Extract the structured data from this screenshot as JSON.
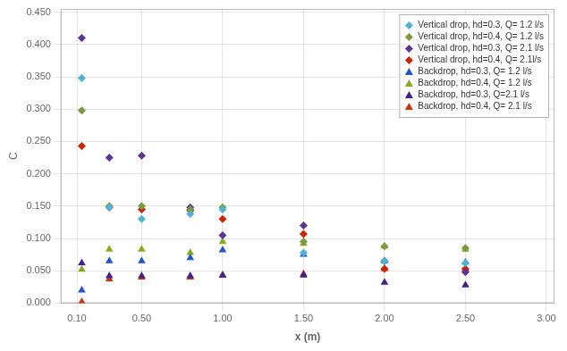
{
  "chart_data": {
    "type": "scatter",
    "xlabel": "x (m)",
    "ylabel": "C",
    "x": [
      0.13,
      0.3,
      0.5,
      0.8,
      1.0,
      1.5,
      2.0,
      2.5
    ],
    "series": [
      {
        "name": "Vertical drop, hd=0.3, Q= 1.2 l/s",
        "marker": "diamond",
        "color": "#4eb3d3",
        "values": [
          0.348,
          0.148,
          0.13,
          0.138,
          0.145,
          0.078,
          0.065,
          0.062
        ]
      },
      {
        "name": "Vertical drop, hd=0.4, Q= 1.2 l/s",
        "marker": "diamond",
        "color": "#7a9a3c",
        "values": [
          0.298,
          0.15,
          0.15,
          0.145,
          0.148,
          0.095,
          0.088,
          0.085
        ]
      },
      {
        "name": "Vertical drop, hd=0.3, Q= 2.1 l/s",
        "marker": "diamond",
        "color": "#5c3399",
        "values": [
          0.41,
          0.225,
          0.228,
          0.148,
          0.105,
          0.12,
          0.065,
          0.048
        ]
      },
      {
        "name": "Vertical drop, hd=0.4, Q= 2.1l/s",
        "marker": "diamond",
        "color": "#cc2200",
        "values": [
          0.243,
          0.148,
          0.145,
          0.143,
          0.13,
          0.107,
          0.053,
          0.053
        ]
      },
      {
        "name": "Backdrop, hd=0.3, Q= 1.2 l/s",
        "marker": "triangle",
        "color": "#2255cc",
        "values": [
          0.02,
          0.065,
          0.065,
          0.07,
          0.082,
          0.075,
          0.065,
          0.063
        ]
      },
      {
        "name": "Backdrop, hd=0.4, Q= 1.2 l/s",
        "marker": "triangle",
        "color": "#88aa22",
        "values": [
          0.052,
          0.083,
          0.083,
          0.078,
          0.095,
          0.092,
          0.088,
          0.083
        ]
      },
      {
        "name": "Backdrop, hd=0.3, Q=2.1 l/s",
        "marker": "triangle",
        "color": "#442288",
        "values": [
          0.062,
          0.042,
          0.042,
          0.042,
          0.043,
          0.043,
          0.032,
          0.028
        ]
      },
      {
        "name": "Backdrop, hd=0.4, Q= 2.1 l/s",
        "marker": "triangle",
        "color": "#cc3311",
        "values": [
          0.002,
          0.037,
          0.04,
          0.04,
          0.043,
          0.045,
          0.053,
          0.053
        ]
      }
    ],
    "xlim": [
      0.0,
      3.05
    ],
    "ylim": [
      0.0,
      0.455
    ],
    "xticks": [
      {
        "value": 0.1,
        "label": "0.10"
      },
      {
        "value": 0.5,
        "label": "0.50"
      },
      {
        "value": 1.0,
        "label": "1.00"
      },
      {
        "value": 1.5,
        "label": "1.50"
      },
      {
        "value": 2.0,
        "label": "2.00"
      },
      {
        "value": 2.5,
        "label": "2.50"
      },
      {
        "value": 3.0,
        "label": "3.00"
      }
    ],
    "yticks": [
      {
        "value": 0.0,
        "label": "0.000"
      },
      {
        "value": 0.05,
        "label": "0.050"
      },
      {
        "value": 0.1,
        "label": "0.100"
      },
      {
        "value": 0.15,
        "label": "0.150"
      },
      {
        "value": 0.2,
        "label": "0.200"
      },
      {
        "value": 0.25,
        "label": "0.250"
      },
      {
        "value": 0.3,
        "label": "0.300"
      },
      {
        "value": 0.35,
        "label": "0.350"
      },
      {
        "value": 0.4,
        "label": "0.400"
      },
      {
        "value": 0.45,
        "label": "0.450"
      }
    ],
    "grid": true,
    "legend": "upper right"
  }
}
